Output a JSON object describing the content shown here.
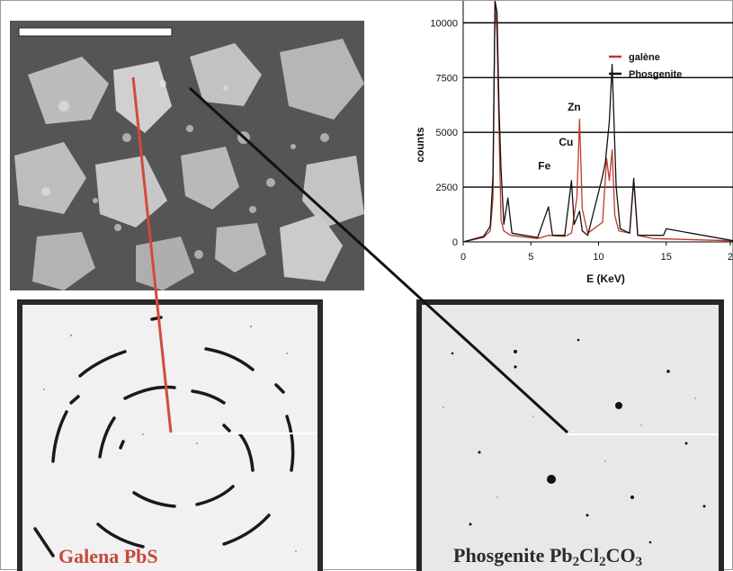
{
  "sem_image": {
    "scale_bar_label": ""
  },
  "chart_data": {
    "type": "line",
    "xlabel": "E (KeV)",
    "ylabel": "counts",
    "xlim": [
      0,
      20
    ],
    "ylim": [
      0,
      11000
    ],
    "x_ticks": [
      "0",
      "5",
      "10",
      "15",
      "2"
    ],
    "y_ticks": [
      "0",
      "2500",
      "5000",
      "7500",
      "10000"
    ],
    "legend": {
      "position": "top-right",
      "entries": [
        "galène",
        "Phosgenite"
      ]
    },
    "series": [
      {
        "name": "galène",
        "color": "#c0392b",
        "x": [
          0,
          1.5,
          2.0,
          2.2,
          2.35,
          2.5,
          2.65,
          2.8,
          3.0,
          3.5,
          5.5,
          6.3,
          7.5,
          8.0,
          8.4,
          8.6,
          8.8,
          9.2,
          10.3,
          10.6,
          10.8,
          11.0,
          11.2,
          11.5,
          12.3,
          12.6,
          12.9,
          14.0,
          20
        ],
        "y": [
          0,
          200,
          500,
          2000,
          11000,
          9500,
          5000,
          1000,
          500,
          300,
          150,
          300,
          250,
          400,
          2000,
          5600,
          1500,
          400,
          900,
          3800,
          2800,
          4200,
          1200,
          500,
          400,
          2800,
          300,
          150,
          50
        ]
      },
      {
        "name": "Phosgenite",
        "color": "#111111",
        "x": [
          0,
          1.5,
          2.0,
          2.2,
          2.35,
          2.5,
          2.65,
          2.8,
          3.0,
          3.3,
          3.6,
          4.5,
          5.5,
          6.3,
          6.6,
          7.5,
          8.0,
          8.2,
          8.6,
          8.8,
          9.2,
          10.3,
          10.5,
          10.8,
          11.0,
          11.3,
          11.6,
          12.3,
          12.6,
          12.9,
          14.8,
          15.0,
          20
        ],
        "y": [
          0,
          250,
          700,
          3000,
          11000,
          10500,
          6000,
          3300,
          800,
          2000,
          400,
          300,
          200,
          1600,
          300,
          300,
          2800,
          800,
          1400,
          500,
          300,
          3000,
          3600,
          5500,
          8100,
          2500,
          600,
          400,
          2900,
          300,
          300,
          600,
          50
        ]
      }
    ],
    "annotations": [
      {
        "label": "Fe",
        "x": 6.4
      },
      {
        "label": "Cu",
        "x": 8.0
      },
      {
        "label": "Zn",
        "x": 8.6
      }
    ]
  },
  "captions": {
    "left": "Galena PbS",
    "right": {
      "text": "Phosgenite Pb",
      "sub1": "2",
      "mid": "Cl",
      "sub2": "2",
      "tail": "CO",
      "sub3": "3"
    }
  }
}
